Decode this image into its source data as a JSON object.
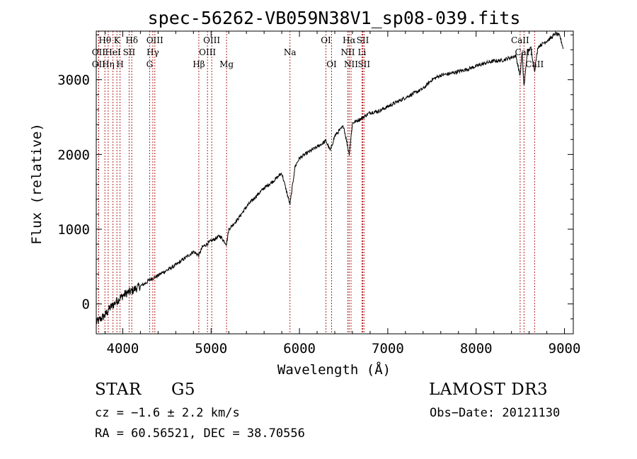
{
  "chart_data": {
    "type": "line",
    "title": "spec-56262-VB059N38V1_sp08-039.fits",
    "xlabel": "Wavelength (Å)",
    "ylabel": "Flux (relative)",
    "xlim": [
      3700,
      9100
    ],
    "ylim": [
      -400,
      3650
    ],
    "x_ticks": [
      4000,
      5000,
      6000,
      7000,
      8000,
      9000
    ],
    "y_ticks": [
      0,
      1000,
      2000,
      3000
    ],
    "line_color": "#000000",
    "marker_color": "#b22222",
    "spectrum": {
      "x": [
        3700,
        3750,
        3800,
        3850,
        3900,
        3950,
        4000,
        4050,
        4100,
        4150,
        4200,
        4250,
        4300,
        4350,
        4400,
        4450,
        4500,
        4600,
        4700,
        4800,
        4861,
        4900,
        5000,
        5100,
        5175,
        5200,
        5300,
        5400,
        5500,
        5600,
        5700,
        5800,
        5893,
        5950,
        6000,
        6100,
        6200,
        6300,
        6350,
        6400,
        6500,
        6563,
        6600,
        6700,
        6800,
        6900,
        7000,
        7100,
        7200,
        7300,
        7400,
        7500,
        7600,
        7700,
        7800,
        7900,
        8000,
        8100,
        8200,
        8300,
        8400,
        8450,
        8498,
        8520,
        8542,
        8580,
        8620,
        8662,
        8700,
        8750,
        8800,
        8850,
        8900,
        8950,
        8990
      ],
      "y": [
        -250,
        -200,
        -150,
        -60,
        0,
        60,
        110,
        150,
        170,
        210,
        240,
        270,
        320,
        350,
        380,
        420,
        450,
        520,
        610,
        700,
        650,
        760,
        840,
        910,
        800,
        1000,
        1130,
        1300,
        1430,
        1550,
        1640,
        1750,
        1330,
        1840,
        1950,
        2030,
        2100,
        2180,
        2050,
        2250,
        2380,
        2000,
        2420,
        2480,
        2560,
        2580,
        2640,
        2700,
        2760,
        2820,
        2880,
        3000,
        3060,
        3080,
        3110,
        3140,
        3180,
        3220,
        3250,
        3260,
        3300,
        3320,
        3050,
        3360,
        2900,
        3380,
        3420,
        3120,
        3440,
        3480,
        3520,
        3560,
        3620,
        3580,
        3400
      ]
    },
    "lines": [
      {
        "label": "Hθ",
        "x": 3798,
        "row": 1
      },
      {
        "label": "OII",
        "x": 3727,
        "row": 2
      },
      {
        "label": "OII",
        "x": 3727,
        "row": 3
      },
      {
        "label": "Hη",
        "x": 3835,
        "row": 3
      },
      {
        "label": "HeI",
        "x": 3889,
        "row": 2
      },
      {
        "label": "K",
        "x": 3934,
        "row": 1
      },
      {
        "label": "H",
        "x": 3969,
        "row": 3
      },
      {
        "label": "SII",
        "x": 4072,
        "row": 2
      },
      {
        "label": "Hδ",
        "x": 4102,
        "row": 1
      },
      {
        "label": "OIII",
        "x": 4363,
        "row": 1
      },
      {
        "label": "Hγ",
        "x": 4340,
        "row": 2
      },
      {
        "label": "G",
        "x": 4304,
        "row": 3
      },
      {
        "label": "Hβ",
        "x": 4861,
        "row": 3
      },
      {
        "label": "OIII",
        "x": 5007,
        "row": 1
      },
      {
        "label": "OIII",
        "x": 4959,
        "row": 2
      },
      {
        "label": "Mg",
        "x": 5175,
        "row": 3
      },
      {
        "label": "Na",
        "x": 5893,
        "row": 2
      },
      {
        "label": "OI",
        "x": 6300,
        "row": 1
      },
      {
        "label": "OI",
        "x": 6364,
        "row": 3
      },
      {
        "label": "Hα",
        "x": 6563,
        "row": 1
      },
      {
        "label": "NII",
        "x": 6548,
        "row": 2
      },
      {
        "label": "NII",
        "x": 6584,
        "row": 3
      },
      {
        "label": "SII",
        "x": 6717,
        "row": 1
      },
      {
        "label": "Li",
        "x": 6708,
        "row": 2
      },
      {
        "label": "SII",
        "x": 6731,
        "row": 3
      },
      {
        "label": "CaII",
        "x": 8498,
        "row": 1
      },
      {
        "label": "CaII",
        "x": 8542,
        "row": 2
      },
      {
        "label": "CaII",
        "x": 8662,
        "row": 3
      }
    ]
  },
  "info": {
    "class_label": "STAR",
    "subclass": "G5",
    "survey": "LAMOST DR3",
    "cz": "cz = −1.6 ± 2.2 km/s",
    "obs_date": "Obs−Date: 20121130",
    "coords": "RA =  60.56521, DEC =  38.70556"
  }
}
